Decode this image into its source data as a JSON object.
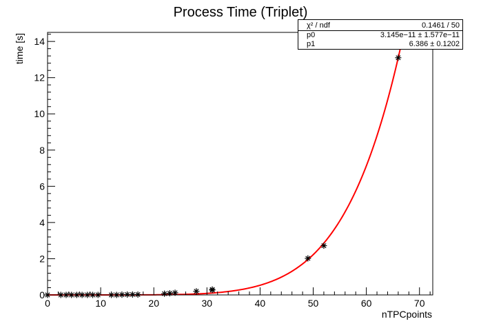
{
  "chart_data": {
    "type": "scatter",
    "title": "Process Time (Triplet)",
    "xlabel": "nTPCpoints",
    "ylabel": "time [s]",
    "xlim": [
      0,
      72.5
    ],
    "ylim": [
      0,
      14.5
    ],
    "x_ticks": [
      0,
      10,
      20,
      30,
      40,
      50,
      60,
      70
    ],
    "y_ticks": [
      0,
      2,
      4,
      6,
      8,
      10,
      12,
      14
    ],
    "points_marker": "asterisk",
    "points_color": "#000000",
    "points": [
      {
        "x": 0,
        "y": 0.0
      },
      {
        "x": 2.5,
        "y": 0.0
      },
      {
        "x": 3.5,
        "y": 0.0
      },
      {
        "x": 4.5,
        "y": 0.0
      },
      {
        "x": 5.5,
        "y": 0.0
      },
      {
        "x": 6.5,
        "y": 0.0
      },
      {
        "x": 7.5,
        "y": 0.0
      },
      {
        "x": 8.5,
        "y": 0.0
      },
      {
        "x": 9.5,
        "y": 0.0
      },
      {
        "x": 12,
        "y": 0.0
      },
      {
        "x": 13,
        "y": 0.0
      },
      {
        "x": 14,
        "y": 0.01
      },
      {
        "x": 15,
        "y": 0.02
      },
      {
        "x": 16,
        "y": 0.02
      },
      {
        "x": 17,
        "y": 0.02
      },
      {
        "x": 22,
        "y": 0.07
      },
      {
        "x": 23,
        "y": 0.09
      },
      {
        "x": 24,
        "y": 0.12
      },
      {
        "x": 28,
        "y": 0.2
      },
      {
        "x": 31,
        "y": 0.27
      },
      {
        "x": 31,
        "y": 0.3
      },
      {
        "x": 49,
        "y": 2.02
      },
      {
        "x": 52,
        "y": 2.72
      },
      {
        "x": 66,
        "y": 13.1
      }
    ],
    "fit": {
      "function": "p0 * x^p1",
      "color": "#ff0000",
      "p0": 3.145e-11,
      "p1": 6.386,
      "x_range": [
        0,
        66.5
      ]
    },
    "stats": {
      "rows": [
        {
          "label": "χ² / ndf",
          "value": "0.1461 / 50"
        },
        {
          "label": "p0",
          "value": "3.145e−11 ± 1.577e−11"
        },
        {
          "label": "p1",
          "value": "6.386 ± 0.1202"
        }
      ]
    }
  }
}
